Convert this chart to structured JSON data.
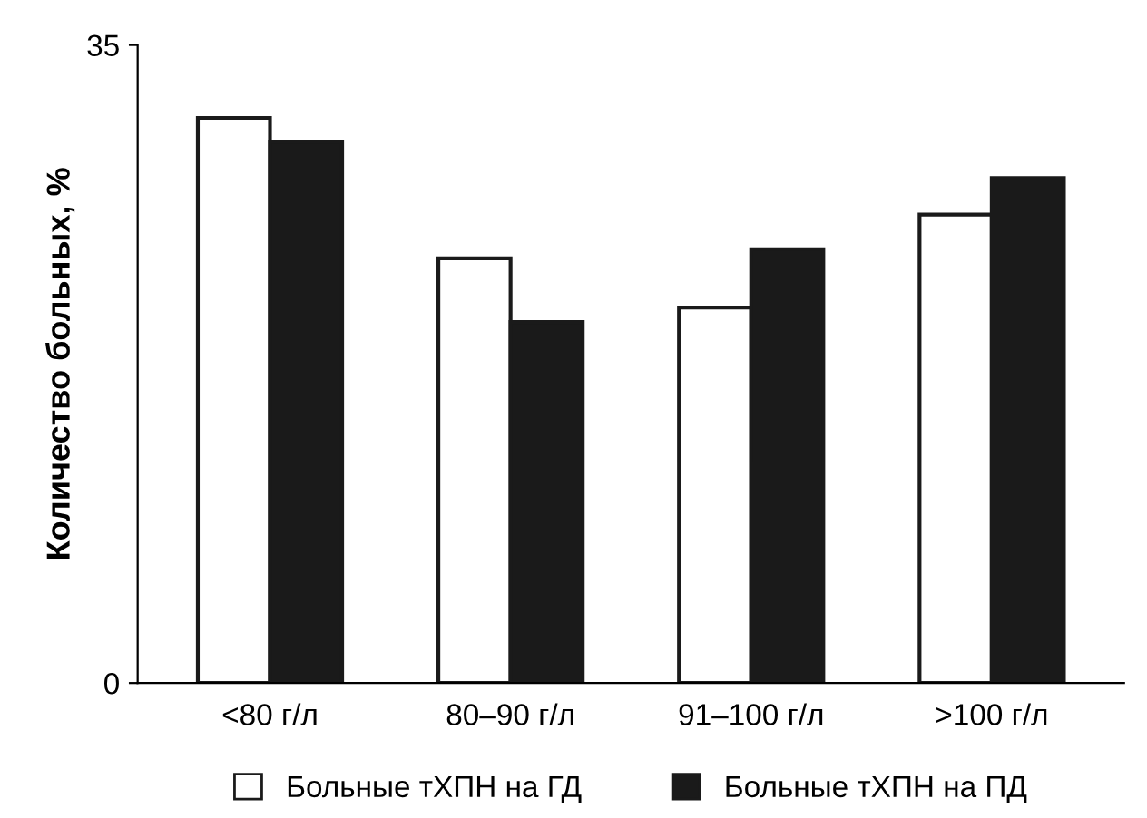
{
  "chart_data": {
    "type": "bar",
    "ylabel": "Количество больных, %",
    "categories": [
      "<80 г/л",
      "80–90 г/л",
      "91–100 г/л",
      ">100 г/л"
    ],
    "series": [
      {
        "name": "Больные тХПН на ГД",
        "color": "#ffffff",
        "values": [
          31.0,
          23.3,
          20.6,
          25.7
        ]
      },
      {
        "name": "Больные тХПН на ПД",
        "color": "#1a1a1a",
        "values": [
          29.7,
          19.8,
          23.8,
          27.7
        ]
      }
    ],
    "ylim": [
      0,
      35
    ],
    "yticks": [
      0,
      35
    ],
    "grid": false,
    "legend": "bottom"
  }
}
